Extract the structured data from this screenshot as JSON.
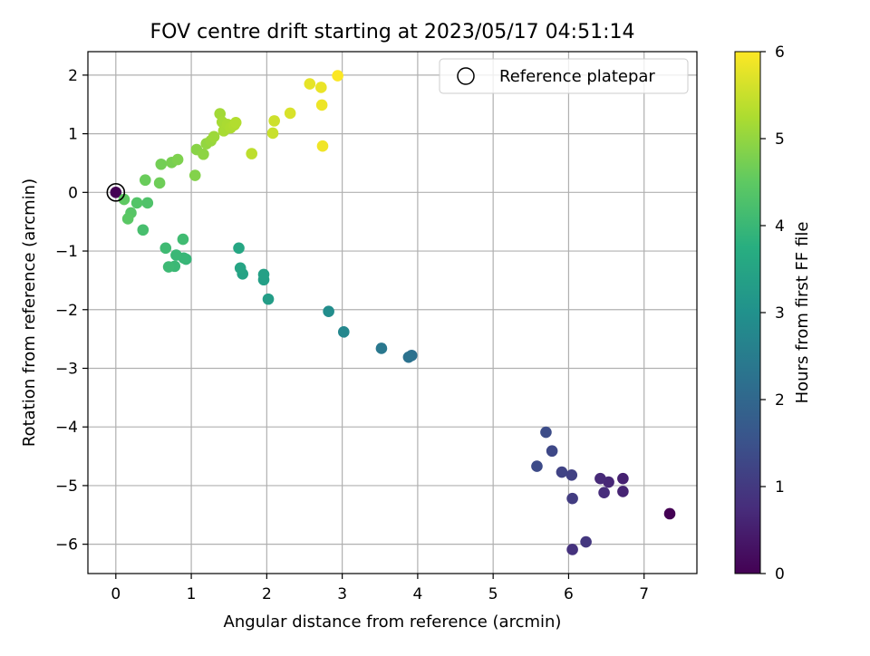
{
  "chart_data": {
    "type": "scatter",
    "title": "FOV centre drift starting at 2023/05/17 04:51:14",
    "xlabel": "Angular distance from reference (arcmin)",
    "ylabel": "Rotation from reference (arcmin)",
    "xlim": [
      -0.37,
      7.7
    ],
    "ylim": [
      -6.5,
      2.4
    ],
    "xticks": [
      0,
      1,
      2,
      3,
      4,
      5,
      6,
      7
    ],
    "xtick_labels": [
      "0",
      "1",
      "2",
      "3",
      "4",
      "5",
      "6",
      "7"
    ],
    "yticks": [
      -6,
      -5,
      -4,
      -3,
      -2,
      -1,
      0,
      1,
      2
    ],
    "ytick_labels": [
      "−6",
      "−5",
      "−4",
      "−3",
      "−2",
      "−1",
      "0",
      "1",
      "2"
    ],
    "grid": true,
    "legend": {
      "placement": "top-right",
      "label": "Reference platepar"
    },
    "colorbar": {
      "label": "Hours from first FF file",
      "min": 0,
      "max": 6,
      "ticks": [
        0,
        1,
        2,
        3,
        4,
        5,
        6
      ],
      "tick_labels": [
        "0",
        "1",
        "2",
        "3",
        "4",
        "5",
        "6"
      ],
      "colormap": "viridis"
    },
    "reference_point": {
      "x": 0,
      "y": 0
    },
    "points": [
      {
        "x": 0.0,
        "y": 0.0,
        "t": 0.0
      },
      {
        "x": 7.34,
        "y": -5.48,
        "t": 0.0
      },
      {
        "x": 6.72,
        "y": -4.88,
        "t": 0.55
      },
      {
        "x": 6.72,
        "y": -5.1,
        "t": 0.6
      },
      {
        "x": 6.53,
        "y": -4.94,
        "t": 0.65
      },
      {
        "x": 6.42,
        "y": -4.88,
        "t": 0.7
      },
      {
        "x": 6.47,
        "y": -5.12,
        "t": 0.75
      },
      {
        "x": 6.05,
        "y": -6.09,
        "t": 0.85
      },
      {
        "x": 6.23,
        "y": -5.96,
        "t": 0.95
      },
      {
        "x": 6.05,
        "y": -5.22,
        "t": 1.05
      },
      {
        "x": 6.04,
        "y": -4.82,
        "t": 1.15
      },
      {
        "x": 5.91,
        "y": -4.77,
        "t": 1.2
      },
      {
        "x": 5.78,
        "y": -4.41,
        "t": 1.3
      },
      {
        "x": 5.58,
        "y": -4.67,
        "t": 1.35
      },
      {
        "x": 5.7,
        "y": -4.09,
        "t": 1.4
      },
      {
        "x": 3.92,
        "y": -2.78,
        "t": 2.2
      },
      {
        "x": 3.88,
        "y": -2.81,
        "t": 2.25
      },
      {
        "x": 3.52,
        "y": -2.66,
        "t": 2.4
      },
      {
        "x": 3.02,
        "y": -2.38,
        "t": 2.75
      },
      {
        "x": 2.82,
        "y": -2.03,
        "t": 2.9
      },
      {
        "x": 2.02,
        "y": -1.82,
        "t": 3.3
      },
      {
        "x": 1.96,
        "y": -1.49,
        "t": 3.35
      },
      {
        "x": 1.96,
        "y": -1.4,
        "t": 3.4
      },
      {
        "x": 1.68,
        "y": -1.39,
        "t": 3.45
      },
      {
        "x": 1.65,
        "y": -1.29,
        "t": 3.5
      },
      {
        "x": 1.63,
        "y": -0.95,
        "t": 3.55
      },
      {
        "x": 0.93,
        "y": -1.14,
        "t": 3.95
      },
      {
        "x": 0.9,
        "y": -1.12,
        "t": 3.98
      },
      {
        "x": 0.8,
        "y": -1.07,
        "t": 4.0
      },
      {
        "x": 0.78,
        "y": -1.26,
        "t": 4.02
      },
      {
        "x": 0.7,
        "y": -1.27,
        "t": 4.05
      },
      {
        "x": 0.66,
        "y": -0.95,
        "t": 4.08
      },
      {
        "x": 0.89,
        "y": -0.8,
        "t": 4.1
      },
      {
        "x": 0.36,
        "y": -0.64,
        "t": 4.2
      },
      {
        "x": 0.42,
        "y": -0.18,
        "t": 4.3
      },
      {
        "x": 0.28,
        "y": -0.18,
        "t": 4.35
      },
      {
        "x": 0.2,
        "y": -0.35,
        "t": 4.4
      },
      {
        "x": 0.16,
        "y": -0.45,
        "t": 4.45
      },
      {
        "x": 0.11,
        "y": -0.12,
        "t": 4.5
      },
      {
        "x": 0.39,
        "y": 0.21,
        "t": 4.6
      },
      {
        "x": 0.58,
        "y": 0.16,
        "t": 4.65
      },
      {
        "x": 0.6,
        "y": 0.48,
        "t": 4.7
      },
      {
        "x": 0.74,
        "y": 0.51,
        "t": 4.75
      },
      {
        "x": 0.82,
        "y": 0.56,
        "t": 4.8
      },
      {
        "x": 1.05,
        "y": 0.29,
        "t": 4.85
      },
      {
        "x": 1.07,
        "y": 0.73,
        "t": 4.9
      },
      {
        "x": 1.16,
        "y": 0.65,
        "t": 4.95
      },
      {
        "x": 1.2,
        "y": 0.83,
        "t": 5.0
      },
      {
        "x": 1.26,
        "y": 0.88,
        "t": 5.05
      },
      {
        "x": 1.3,
        "y": 0.95,
        "t": 5.1
      },
      {
        "x": 1.38,
        "y": 1.34,
        "t": 5.15
      },
      {
        "x": 1.41,
        "y": 1.2,
        "t": 5.18
      },
      {
        "x": 1.43,
        "y": 1.05,
        "t": 5.2
      },
      {
        "x": 1.48,
        "y": 1.16,
        "t": 5.22
      },
      {
        "x": 1.52,
        "y": 1.1,
        "t": 5.25
      },
      {
        "x": 1.57,
        "y": 1.15,
        "t": 5.28
      },
      {
        "x": 1.59,
        "y": 1.19,
        "t": 5.3
      },
      {
        "x": 1.8,
        "y": 0.66,
        "t": 5.4
      },
      {
        "x": 2.08,
        "y": 1.01,
        "t": 5.5
      },
      {
        "x": 2.1,
        "y": 1.22,
        "t": 5.55
      },
      {
        "x": 2.31,
        "y": 1.35,
        "t": 5.65
      },
      {
        "x": 2.57,
        "y": 1.85,
        "t": 5.78
      },
      {
        "x": 2.72,
        "y": 1.79,
        "t": 5.82
      },
      {
        "x": 2.73,
        "y": 1.49,
        "t": 5.85
      },
      {
        "x": 2.74,
        "y": 0.79,
        "t": 5.88
      },
      {
        "x": 2.94,
        "y": 1.99,
        "t": 5.98
      }
    ]
  }
}
